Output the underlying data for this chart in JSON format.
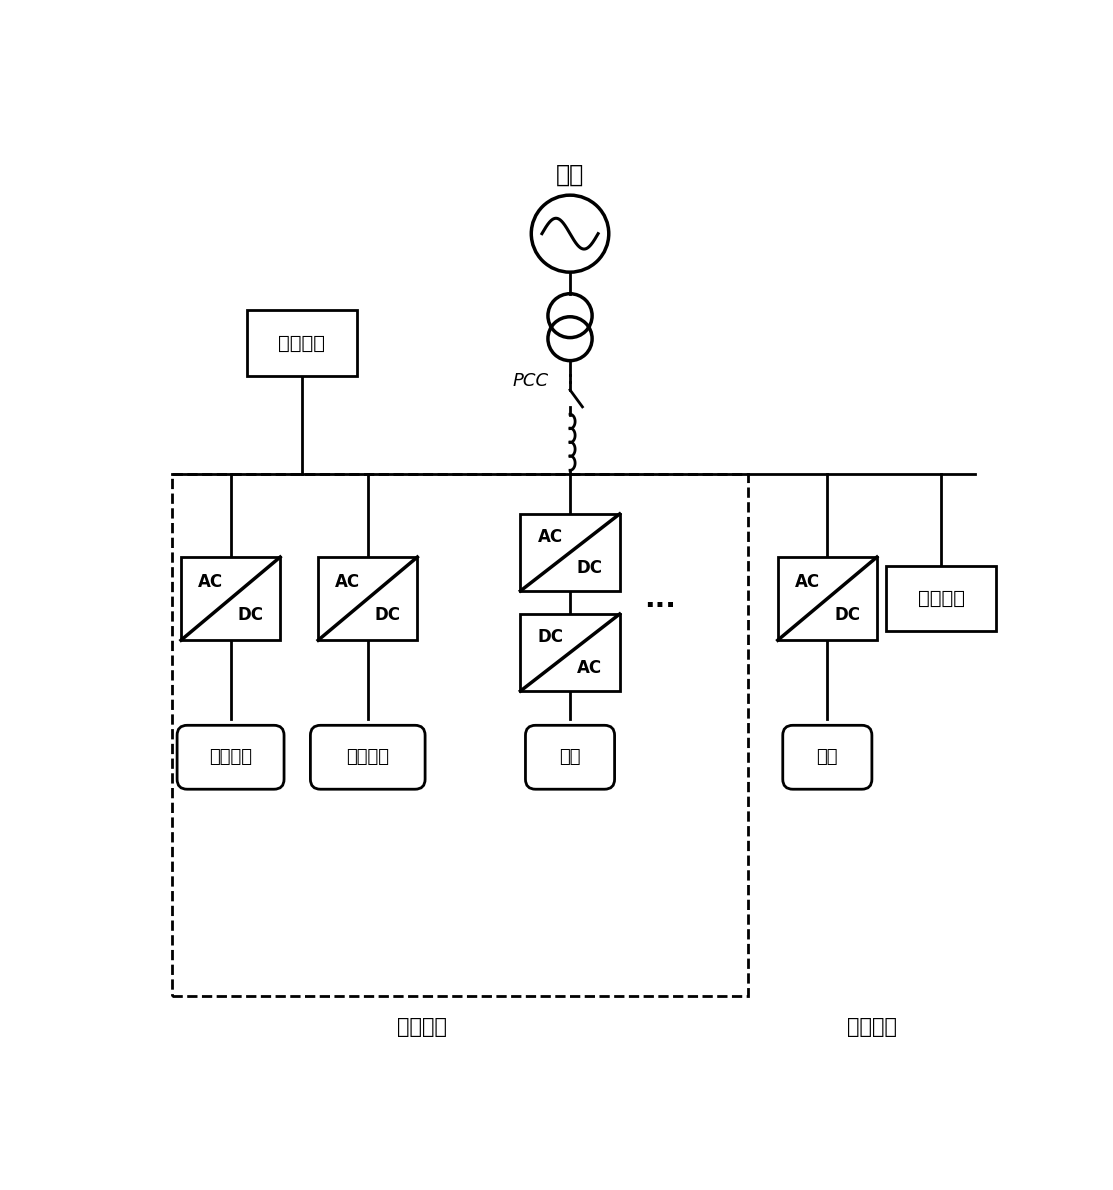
{
  "bg_color": "#ffffff",
  "lw": 2.0,
  "blw": 2.0,
  "grid_label": "电网",
  "pcc_label": "PCC",
  "slave_label": "从逆变器",
  "master_label": "主逆变器",
  "load_label1": "用电负荷",
  "load_label2": "用电负荷",
  "pv_label": "光伏电池",
  "fuel_label": "燃料电池",
  "wind_label": "风机",
  "storage_label": "储能",
  "dots": "...",
  "fig_w": 11.13,
  "fig_h": 11.9,
  "dpi": 100
}
